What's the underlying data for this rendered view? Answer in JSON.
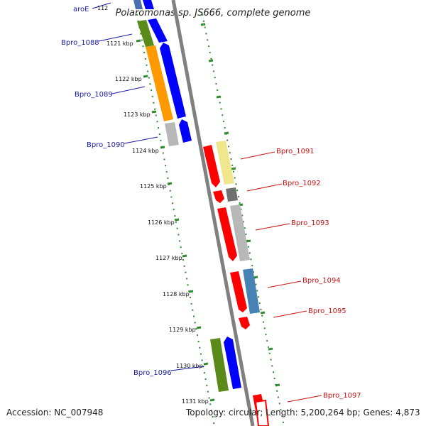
{
  "title": "Polaromonas sp. JS666, complete genome",
  "accession": "Accession: NC_007948",
  "topology": "Topology: circular; Length: 5,200,264 bp; Genes: 4,873",
  "ticks": [
    "1121 kbp",
    "1122 kbp",
    "1123 kbp",
    "1124 kbp",
    "1125 kbp",
    "1126 kbp",
    "1127 kbp",
    "1128 kbp",
    "1129 kbp",
    "1130 kbp",
    "1131 kbp"
  ],
  "partial_tick": "112",
  "left_genes": [
    {
      "name": "aroE",
      "color": "#4a6fb0"
    },
    {
      "name": "Bpro_1088",
      "color": "#5a8a1a"
    },
    {
      "name": "Bpro_1089",
      "color": "#ff9900"
    },
    {
      "name": "Bpro_1090",
      "color": "#b8b8b8"
    },
    {
      "name": "Bpro_1096",
      "color": "#5a8a1a"
    }
  ],
  "right_genes": [
    {
      "name": "Bpro_1091",
      "color": "#f0e68c"
    },
    {
      "name": "Bpro_1092",
      "color": "#707070"
    },
    {
      "name": "Bpro_1093",
      "color": "#b8b8b8"
    },
    {
      "name": "Bpro_1094",
      "color": "#4682b4"
    },
    {
      "name": "Bpro_1095",
      "color": "#ff0000"
    },
    {
      "name": "Bpro_1097",
      "color": "#ff0000"
    }
  ],
  "colors": {
    "blue_label": "#1a1aa6",
    "red_label": "#cc1111",
    "forward_strand": "#0000ff",
    "reverse_strand": "#ff0000",
    "backbone": "#808080",
    "ruler": "#2e8b2e"
  }
}
